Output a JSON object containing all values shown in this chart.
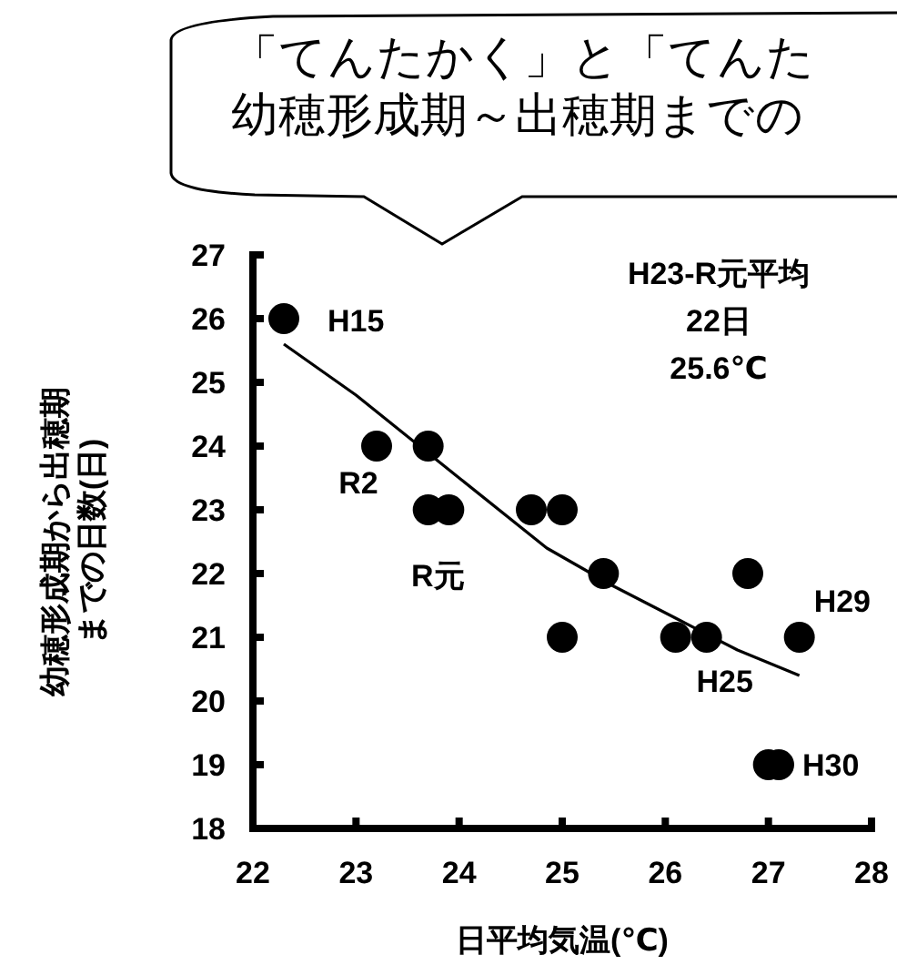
{
  "chart_data": {
    "type": "scatter",
    "xlabel": "日平均気温(℃)",
    "ylabel": "幼穂形成期から出穂期までの日数(日)",
    "xlim": [
      22,
      28
    ],
    "xticks": [
      22,
      23,
      24,
      25,
      26,
      27,
      28
    ],
    "ylim": [
      18,
      27
    ],
    "yticks": [
      18,
      19,
      20,
      21,
      22,
      23,
      24,
      25,
      26,
      27
    ],
    "grid": false,
    "marker": "circle",
    "series": [
      {
        "color": "#000000",
        "x": [
          22.3,
          23.2,
          23.7,
          23.7,
          23.9,
          24.7,
          25.0,
          25.4,
          25.0,
          26.1,
          26.4,
          26.8,
          27.3,
          27.0,
          27.1
        ],
        "values": [
          26,
          24,
          24,
          23,
          23,
          23,
          23,
          22,
          21,
          21,
          21,
          22,
          21,
          19,
          19
        ]
      },
      {
        "type": "line",
        "color": "#000000",
        "marker": "none",
        "x": [
          22.3,
          23.0,
          24.0,
          24.85,
          25.5,
          26.1,
          26.7,
          27.3
        ],
        "values": [
          25.6,
          24.8,
          23.5,
          22.4,
          21.8,
          21.3,
          20.8,
          20.4
        ]
      }
    ],
    "annotations": [
      "「てんたかく」と「てんた",
      "幼穂形成期～出穂期までの",
      "H23-R元平均\n22日\n25.6℃",
      {
        "text": "H15",
        "x": 22.3,
        "y": 26
      },
      {
        "text": "R2",
        "x": 23.2,
        "y": 24
      },
      {
        "text": "R元",
        "x": 23.9,
        "y": 23
      },
      {
        "text": "H29",
        "x": 27.3,
        "y": 21
      },
      {
        "text": "H25",
        "x": 26.4,
        "y": 21
      },
      {
        "text": "H30",
        "x": 27.1,
        "y": 19
      }
    ]
  }
}
